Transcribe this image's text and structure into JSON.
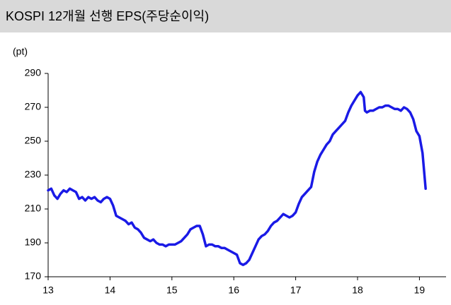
{
  "chart_data": {
    "type": "line",
    "title": "KOSPI 12개월 선행 EPS(주당순이익)",
    "y_axis_label": "(pt)",
    "color": "#1a1ae6",
    "xlim": [
      13,
      19.43
    ],
    "xticks": [
      13,
      14,
      15,
      16,
      17,
      18,
      19
    ],
    "ylim": [
      170,
      290
    ],
    "yticks": [
      170,
      190,
      210,
      230,
      250,
      270,
      290
    ],
    "x": [
      13.0,
      13.05,
      13.1,
      13.15,
      13.2,
      13.25,
      13.3,
      13.35,
      13.4,
      13.45,
      13.5,
      13.55,
      13.6,
      13.65,
      13.7,
      13.75,
      13.8,
      13.85,
      13.9,
      13.95,
      14.0,
      14.05,
      14.1,
      14.15,
      14.2,
      14.25,
      14.3,
      14.35,
      14.4,
      14.45,
      14.5,
      14.55,
      14.6,
      14.65,
      14.7,
      14.75,
      14.8,
      14.85,
      14.9,
      14.95,
      15.0,
      15.05,
      15.1,
      15.15,
      15.2,
      15.25,
      15.3,
      15.35,
      15.4,
      15.45,
      15.5,
      15.55,
      15.6,
      15.65,
      15.7,
      15.75,
      15.8,
      15.85,
      15.9,
      15.95,
      16.0,
      16.05,
      16.1,
      16.15,
      16.2,
      16.25,
      16.3,
      16.35,
      16.4,
      16.45,
      16.5,
      16.55,
      16.6,
      16.65,
      16.7,
      16.75,
      16.8,
      16.85,
      16.9,
      16.95,
      17.0,
      17.05,
      17.1,
      17.15,
      17.2,
      17.25,
      17.3,
      17.35,
      17.4,
      17.45,
      17.5,
      17.55,
      17.6,
      17.65,
      17.7,
      17.75,
      17.8,
      17.85,
      17.9,
      17.95,
      18.0,
      18.05,
      18.1,
      18.12,
      18.15,
      18.2,
      18.25,
      18.3,
      18.35,
      18.4,
      18.45,
      18.5,
      18.55,
      18.6,
      18.65,
      18.7,
      18.75,
      18.8,
      18.85,
      18.9,
      18.95,
      19.0,
      19.05,
      19.1
    ],
    "values": [
      221,
      222,
      218,
      216,
      219,
      221,
      220,
      222,
      221,
      220,
      216,
      217,
      215,
      217,
      216,
      217,
      215,
      214,
      216,
      217,
      216,
      212,
      206,
      205,
      204,
      203,
      201,
      202,
      199,
      198,
      196,
      193,
      192,
      191,
      192,
      190,
      189,
      189,
      188,
      189,
      189,
      189,
      190,
      191,
      193,
      195,
      198,
      199,
      200,
      200,
      195,
      188,
      189,
      189,
      188,
      188,
      187,
      187,
      186,
      185,
      184,
      183,
      178,
      177,
      178,
      180,
      184,
      188,
      192,
      194,
      195,
      197,
      200,
      202,
      203,
      205,
      207,
      206,
      205,
      206,
      208,
      213,
      217,
      219,
      221,
      223,
      232,
      238,
      242,
      245,
      248,
      250,
      254,
      256,
      258,
      260,
      262,
      267,
      271,
      274,
      277,
      279,
      276,
      268,
      267,
      268,
      268,
      269,
      270,
      270,
      271,
      271,
      270,
      269,
      269,
      268,
      270,
      269,
      267,
      263,
      256,
      253,
      243,
      222
    ]
  }
}
